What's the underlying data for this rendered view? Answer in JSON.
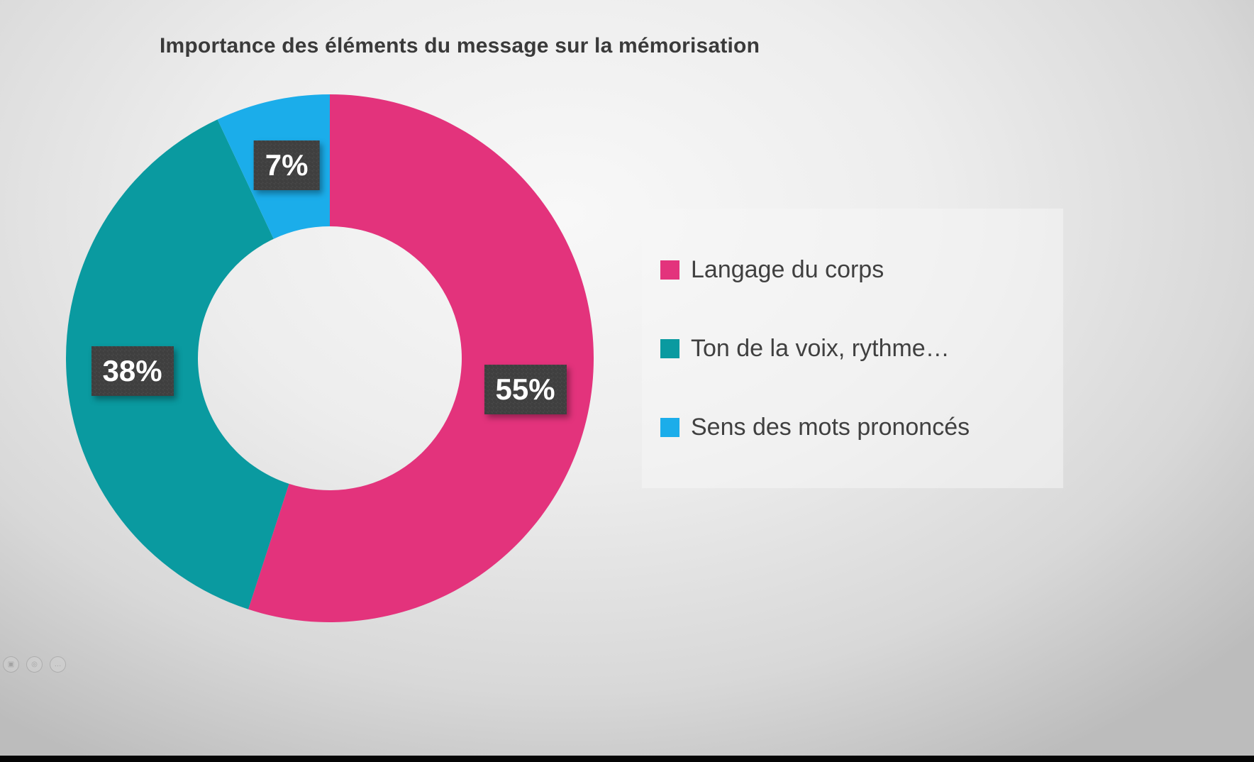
{
  "title": "Importance des éléments du message sur la mémorisation",
  "chart_data": {
    "type": "pie",
    "donut": true,
    "title": "Importance des éléments du message sur la mémorisation",
    "categories": [
      "Langage du corps",
      "Ton de la voix, rythme…",
      "Sens des mots prononcés"
    ],
    "values": [
      55,
      38,
      7
    ],
    "labels": [
      "55%",
      "38%",
      "7%"
    ],
    "colors": [
      "#e3337c",
      "#0a9aa0",
      "#1badea"
    ],
    "start_angle_deg": 0,
    "direction": "clockwise",
    "inner_radius_ratio": 0.5,
    "label_radius_ratio": 0.75,
    "legend_position": "right"
  },
  "legend": {
    "items": [
      {
        "label": "Langage du corps",
        "color": "#e3337c"
      },
      {
        "label": "Ton de la voix, rythme…",
        "color": "#0a9aa0"
      },
      {
        "label": "Sens des mots prononcés",
        "color": "#1badea"
      }
    ]
  },
  "controls": {
    "buttons": [
      {
        "name": "slide-icon",
        "glyph": "▣"
      },
      {
        "name": "magnifier-icon",
        "glyph": "◎"
      },
      {
        "name": "ellipsis-icon",
        "glyph": "…"
      }
    ]
  }
}
